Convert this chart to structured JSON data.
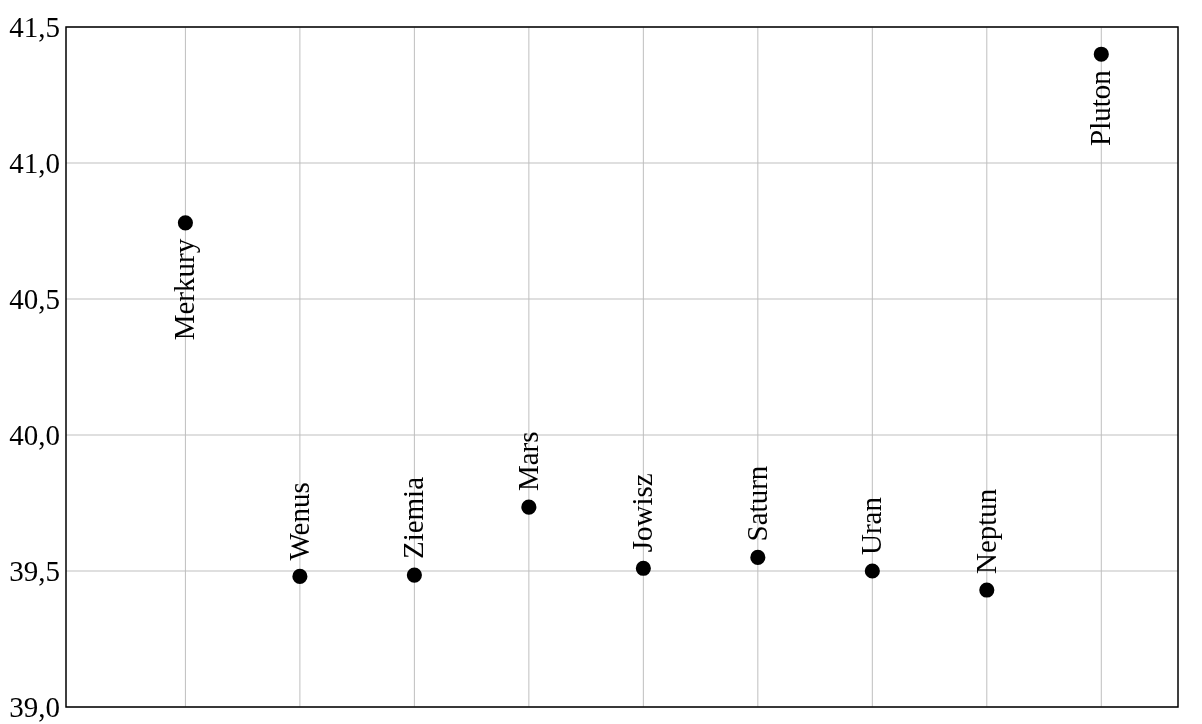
{
  "chart_data": {
    "type": "scatter",
    "categories": [
      "Merkury",
      "Wenus",
      "Ziemia",
      "Mars",
      "Jowisz",
      "Saturn",
      "Uran",
      "Neptun",
      "Pluton"
    ],
    "values": [
      40.78,
      39.48,
      39.485,
      39.735,
      39.51,
      39.55,
      39.5,
      39.43,
      41.4
    ],
    "color": "#000000",
    "ylim": [
      39,
      41.5
    ],
    "yticks": [
      {
        "value": 39,
        "label": "39,0"
      },
      {
        "value": 39.5,
        "label": "39,5"
      },
      {
        "value": 40,
        "label": "40,0"
      },
      {
        "value": 40.5,
        "label": "40,5"
      },
      {
        "value": 41,
        "label": "41,0"
      },
      {
        "value": 41.5,
        "label": "41,5"
      }
    ],
    "grid": true,
    "marker": "circle",
    "tick_labels": "y"
  }
}
